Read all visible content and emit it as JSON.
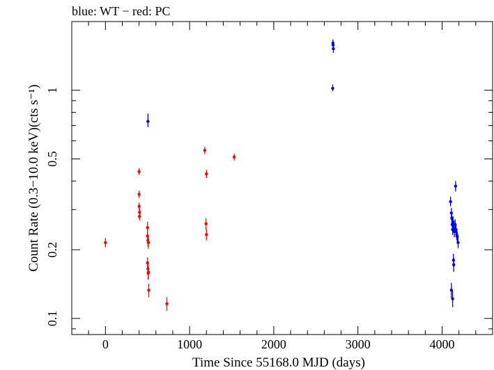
{
  "chart_data": {
    "type": "scatter",
    "title": "blue: WT − red: PC",
    "xlabel": "Time Since 55168.0 MJD (days)",
    "ylabel": "Count Rate (0.3−10.0 keV)(cts s⁻¹)",
    "xlim": [
      -400,
      4600
    ],
    "ylim": [
      0.085,
      2.0
    ],
    "y_scale": "log",
    "grid": false,
    "legend": "none",
    "x_ticks": [
      0,
      1000,
      2000,
      3000,
      4000
    ],
    "x_tick_labels": [
      "0",
      "1000",
      "2000",
      "3000",
      "4000"
    ],
    "y_ticks": [
      0.1,
      0.2,
      0.5,
      1
    ],
    "y_tick_labels": [
      "0.1",
      "0.2",
      "0.5",
      "1"
    ],
    "series": [
      {
        "name": "WT",
        "color": "#0000ff",
        "points": [
          {
            "x": 505,
            "y": 0.73,
            "ylo": 0.69,
            "yhi": 0.79
          },
          {
            "x": 2700,
            "y": 1.02,
            "ylo": 0.99,
            "yhi": 1.06
          },
          {
            "x": 2705,
            "y": 1.58,
            "ylo": 1.52,
            "yhi": 1.64
          },
          {
            "x": 2708,
            "y": 1.52,
            "ylo": 1.46,
            "yhi": 1.58
          },
          {
            "x": 2703,
            "y": 1.61,
            "ylo": 1.55,
            "yhi": 1.67
          },
          {
            "x": 4100,
            "y": 0.325,
            "ylo": 0.31,
            "yhi": 0.342
          },
          {
            "x": 4110,
            "y": 0.29,
            "ylo": 0.275,
            "yhi": 0.305
          },
          {
            "x": 4115,
            "y": 0.275,
            "ylo": 0.26,
            "yhi": 0.29
          },
          {
            "x": 4120,
            "y": 0.258,
            "ylo": 0.245,
            "yhi": 0.272
          },
          {
            "x": 4125,
            "y": 0.245,
            "ylo": 0.232,
            "yhi": 0.258
          },
          {
            "x": 4130,
            "y": 0.265,
            "ylo": 0.25,
            "yhi": 0.28
          },
          {
            "x": 4135,
            "y": 0.18,
            "ylo": 0.168,
            "yhi": 0.192
          },
          {
            "x": 4138,
            "y": 0.172,
            "ylo": 0.16,
            "yhi": 0.185
          },
          {
            "x": 4140,
            "y": 0.25,
            "ylo": 0.237,
            "yhi": 0.263
          },
          {
            "x": 4145,
            "y": 0.24,
            "ylo": 0.227,
            "yhi": 0.253
          },
          {
            "x": 4155,
            "y": 0.258,
            "ylo": 0.245,
            "yhi": 0.272
          },
          {
            "x": 4160,
            "y": 0.38,
            "ylo": 0.36,
            "yhi": 0.4
          },
          {
            "x": 4165,
            "y": 0.245,
            "ylo": 0.232,
            "yhi": 0.258
          },
          {
            "x": 4175,
            "y": 0.232,
            "ylo": 0.22,
            "yhi": 0.245
          },
          {
            "x": 4180,
            "y": 0.228,
            "ylo": 0.216,
            "yhi": 0.24
          },
          {
            "x": 4190,
            "y": 0.215,
            "ylo": 0.203,
            "yhi": 0.227
          },
          {
            "x": 4110,
            "y": 0.133,
            "ylo": 0.123,
            "yhi": 0.143
          },
          {
            "x": 4125,
            "y": 0.122,
            "ylo": 0.112,
            "yhi": 0.132
          }
        ]
      },
      {
        "name": "PC",
        "color": "#ff0000",
        "points": [
          {
            "x": 0,
            "y": 0.215,
            "ylo": 0.205,
            "yhi": 0.225
          },
          {
            "x": 400,
            "y": 0.44,
            "ylo": 0.425,
            "yhi": 0.455
          },
          {
            "x": 400,
            "y": 0.35,
            "ylo": 0.337,
            "yhi": 0.363
          },
          {
            "x": 400,
            "y": 0.31,
            "ylo": 0.298,
            "yhi": 0.322
          },
          {
            "x": 405,
            "y": 0.292,
            "ylo": 0.28,
            "yhi": 0.304
          },
          {
            "x": 405,
            "y": 0.28,
            "ylo": 0.269,
            "yhi": 0.291
          },
          {
            "x": 500,
            "y": 0.25,
            "ylo": 0.236,
            "yhi": 0.265
          },
          {
            "x": 500,
            "y": 0.23,
            "ylo": 0.216,
            "yhi": 0.244
          },
          {
            "x": 505,
            "y": 0.22,
            "ylo": 0.207,
            "yhi": 0.233
          },
          {
            "x": 510,
            "y": 0.215,
            "ylo": 0.202,
            "yhi": 0.228
          },
          {
            "x": 500,
            "y": 0.175,
            "ylo": 0.165,
            "yhi": 0.185
          },
          {
            "x": 505,
            "y": 0.165,
            "ylo": 0.155,
            "yhi": 0.175
          },
          {
            "x": 508,
            "y": 0.158,
            "ylo": 0.148,
            "yhi": 0.168
          },
          {
            "x": 510,
            "y": 0.16,
            "ylo": 0.15,
            "yhi": 0.17
          },
          {
            "x": 515,
            "y": 0.133,
            "ylo": 0.124,
            "yhi": 0.142
          },
          {
            "x": 730,
            "y": 0.116,
            "ylo": 0.108,
            "yhi": 0.124
          },
          {
            "x": 1180,
            "y": 0.545,
            "ylo": 0.525,
            "yhi": 0.565
          },
          {
            "x": 1200,
            "y": 0.43,
            "ylo": 0.412,
            "yhi": 0.448
          },
          {
            "x": 1195,
            "y": 0.26,
            "ylo": 0.245,
            "yhi": 0.275
          },
          {
            "x": 1200,
            "y": 0.233,
            "ylo": 0.22,
            "yhi": 0.246
          },
          {
            "x": 1530,
            "y": 0.51,
            "ylo": 0.493,
            "yhi": 0.527
          }
        ]
      }
    ]
  }
}
